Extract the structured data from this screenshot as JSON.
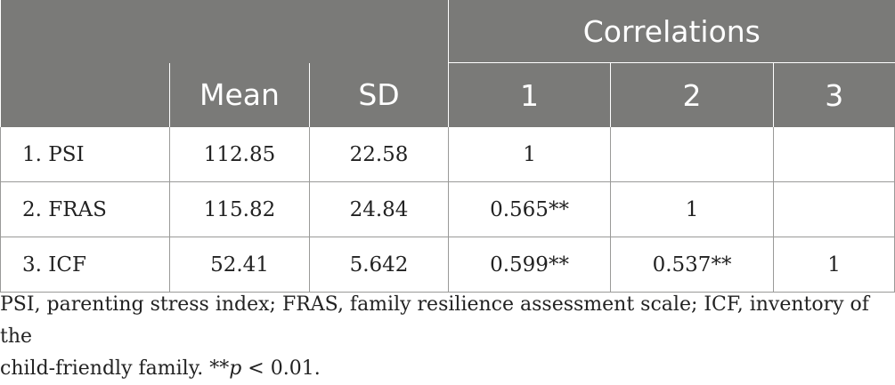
{
  "header": {
    "group_label": "Correlations",
    "columns": [
      "",
      "Mean",
      "SD",
      "1",
      "2",
      "3"
    ]
  },
  "rows": [
    [
      "1. PSI",
      "112.85",
      "22.58",
      "1",
      "",
      ""
    ],
    [
      "2. FRAS",
      "115.82",
      "24.84",
      "0.565**",
      "1",
      ""
    ],
    [
      "3. ICF",
      "52.41",
      "5.642",
      "0.599**",
      "0.537**",
      "1"
    ]
  ],
  "footnote": {
    "line1": "PSI, parenting stress index; FRAS, family resilience assessment scale; ICF, inventory of the",
    "line2_prefix": "child-friendly family. **",
    "p_symbol": "p",
    "line2_suffix": " < 0.01."
  }
}
